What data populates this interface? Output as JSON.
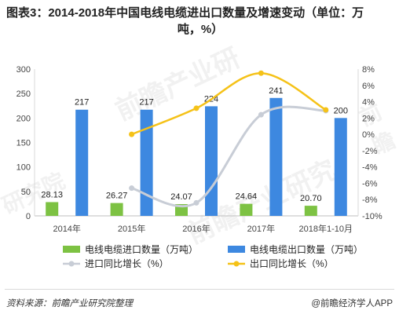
{
  "title_line1": "图表3：2014-2018年中国电线电缆进出口数量及增速变动（单位：万",
  "title_line2": "吨，%）",
  "footer": {
    "source": "资料来源：前瞻产业研究院整理",
    "brand": "@前瞻经济学人APP"
  },
  "watermarks": [
    "前瞻产业研",
    "前瞻产业研究",
    "研究院",
    "前瞻"
  ],
  "chart_data": {
    "type": "bar",
    "categories": [
      "2014年",
      "2015年",
      "2016年",
      "2017年",
      "2018年1-10月"
    ],
    "series": [
      {
        "name": "电线电缆进口数量（万吨）",
        "kind": "bar",
        "axis": "left",
        "color": "#7dc243",
        "values": [
          28.13,
          26.27,
          24.07,
          24.64,
          20.7
        ],
        "labels": [
          "28.13",
          "26.27",
          "24.07",
          "24.64",
          "20.70"
        ]
      },
      {
        "name": "电线电缆出口数量（万吨）",
        "kind": "bar",
        "axis": "left",
        "color": "#3d88e0",
        "values": [
          217,
          217,
          224,
          241,
          200
        ],
        "labels": [
          "217",
          "217",
          "224",
          "241",
          "200"
        ]
      },
      {
        "name": "进口同比增长（%）",
        "kind": "line",
        "axis": "right",
        "color": "#c8cdd6",
        "values": [
          null,
          -6.6,
          -8.4,
          2.4,
          2.9
        ]
      },
      {
        "name": "出口同比增长（%）",
        "kind": "line",
        "axis": "right",
        "color": "#f5c218",
        "values": [
          null,
          0.0,
          3.2,
          7.5,
          3.0
        ]
      }
    ],
    "y_left": {
      "min": 0,
      "max": 300,
      "ticks": [
        "0",
        "50",
        "100",
        "150",
        "200",
        "250",
        "300"
      ]
    },
    "y_right": {
      "min": -10,
      "max": 8,
      "ticks": [
        "-10%",
        "-8%",
        "-6%",
        "-4%",
        "-2%",
        "0%",
        "2%",
        "4%",
        "6%",
        "8%"
      ]
    },
    "grid": false,
    "legend_position": "bottom"
  }
}
